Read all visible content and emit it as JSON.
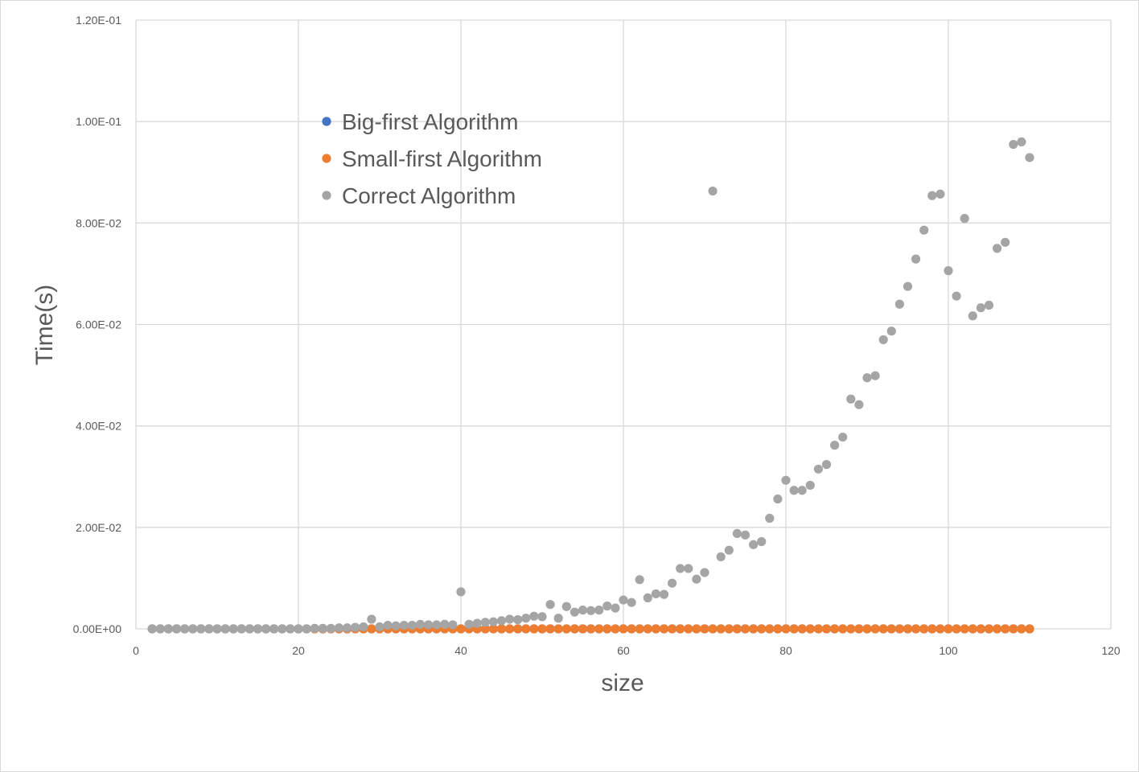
{
  "chart_data": {
    "type": "scatter",
    "title": "",
    "xlabel": "size",
    "ylabel": "Time(s)",
    "xlim": [
      0,
      120
    ],
    "ylim": [
      0,
      0.12
    ],
    "x_ticks": [
      0,
      20,
      40,
      60,
      80,
      100,
      120
    ],
    "x_tick_labels": [
      "0",
      "20",
      "40",
      "60",
      "80",
      "100",
      "120"
    ],
    "y_ticks": [
      0,
      0.02,
      0.04,
      0.06,
      0.08,
      0.1,
      0.12
    ],
    "y_tick_labels": [
      "0.00E+00",
      "2.00E-02",
      "4.00E-02",
      "6.00E-02",
      "8.00E-02",
      "1.00E-01",
      "1.20E-01"
    ],
    "grid": true,
    "legend_position": "upper-left inside plot",
    "series": [
      {
        "name": "Big-first Algorithm",
        "color": "#4472c4",
        "x": [
          2,
          3,
          4,
          5,
          6,
          7,
          8,
          9,
          10,
          11,
          12,
          13,
          14,
          15,
          16,
          17,
          18,
          19,
          20,
          21,
          22,
          23,
          24,
          25,
          26,
          27,
          28,
          29,
          30,
          31,
          32,
          33,
          34,
          35,
          36,
          37,
          38,
          39,
          40,
          41,
          42,
          43,
          44,
          45,
          46,
          47,
          48,
          49,
          50,
          51,
          52,
          53,
          54,
          55,
          56,
          57,
          58,
          59,
          60,
          61,
          62,
          63,
          64,
          65,
          66,
          67,
          68,
          69,
          70,
          71,
          72,
          73,
          74,
          75,
          76,
          77,
          78,
          79,
          80,
          81,
          82,
          83,
          84,
          85,
          86,
          87,
          88,
          89,
          90,
          91,
          92,
          93,
          94,
          95,
          96,
          97,
          98,
          99,
          100,
          101,
          102,
          103,
          104,
          105,
          106,
          107,
          108,
          109,
          110
        ],
        "y": [
          0,
          0,
          0,
          0,
          0,
          0,
          0,
          0,
          0,
          0,
          0,
          0,
          0,
          0,
          0,
          0,
          0,
          0,
          0,
          0,
          0,
          0,
          0,
          0,
          0,
          0,
          0,
          0,
          0,
          0,
          0,
          0,
          0,
          0,
          0,
          0,
          0,
          0,
          0,
          0,
          0,
          0,
          0,
          0,
          0,
          0,
          0,
          0,
          0,
          0,
          0,
          0,
          0,
          0,
          0,
          0,
          0,
          0,
          0,
          0,
          0,
          0,
          0,
          0,
          0,
          0,
          0,
          0,
          0,
          0,
          0,
          0,
          0,
          0,
          0,
          0,
          0,
          0,
          0,
          0,
          0,
          0,
          0,
          0,
          0,
          0,
          0,
          0,
          0,
          0,
          0,
          0,
          0,
          0,
          0,
          0,
          0,
          0,
          0,
          0,
          0,
          0,
          0,
          0,
          0,
          0,
          0,
          0,
          0
        ]
      },
      {
        "name": "Small-first Algorithm",
        "color": "#ed7d31",
        "x": [
          2,
          3,
          4,
          5,
          6,
          7,
          8,
          9,
          10,
          11,
          12,
          13,
          14,
          15,
          16,
          17,
          18,
          19,
          20,
          21,
          22,
          23,
          24,
          25,
          26,
          27,
          28,
          29,
          30,
          31,
          32,
          33,
          34,
          35,
          36,
          37,
          38,
          39,
          40,
          41,
          42,
          43,
          44,
          45,
          46,
          47,
          48,
          49,
          50,
          51,
          52,
          53,
          54,
          55,
          56,
          57,
          58,
          59,
          60,
          61,
          62,
          63,
          64,
          65,
          66,
          67,
          68,
          69,
          70,
          71,
          72,
          73,
          74,
          75,
          76,
          77,
          78,
          79,
          80,
          81,
          82,
          83,
          84,
          85,
          86,
          87,
          88,
          89,
          90,
          91,
          92,
          93,
          94,
          95,
          96,
          97,
          98,
          99,
          100,
          101,
          102,
          103,
          104,
          105,
          106,
          107,
          108,
          109,
          110
        ],
        "y": [
          0,
          0,
          0,
          0,
          0,
          0,
          0,
          0,
          0,
          0,
          0,
          0,
          0,
          0,
          0,
          0,
          0,
          0,
          0,
          0,
          0,
          0,
          0,
          0,
          0,
          0,
          0,
          0,
          0,
          0,
          0,
          0,
          0,
          0,
          0,
          0,
          0,
          0,
          0,
          0,
          0,
          0,
          0,
          0,
          0,
          0,
          0,
          0,
          0,
          0,
          0,
          0,
          0,
          0,
          0,
          0,
          0,
          0,
          0,
          0,
          0,
          0,
          0,
          0,
          0,
          0,
          0,
          0,
          0,
          0,
          0,
          0,
          0,
          0,
          0,
          0,
          0,
          0,
          0,
          0,
          0,
          0,
          0,
          0,
          0,
          0,
          0,
          0,
          0,
          0,
          0,
          0,
          0,
          0,
          0,
          0,
          0,
          0,
          0,
          0,
          0,
          0,
          0,
          0,
          0,
          0,
          0,
          0,
          0
        ]
      },
      {
        "name": "Correct Algorithm",
        "color": "#a5a5a5",
        "x": [
          2,
          3,
          4,
          5,
          6,
          7,
          8,
          9,
          10,
          11,
          12,
          13,
          14,
          15,
          16,
          17,
          18,
          19,
          20,
          21,
          22,
          23,
          24,
          25,
          26,
          27,
          28,
          29,
          30,
          31,
          32,
          33,
          34,
          35,
          36,
          37,
          38,
          39,
          40,
          41,
          42,
          43,
          44,
          45,
          46,
          47,
          48,
          49,
          50,
          51,
          52,
          53,
          54,
          55,
          56,
          57,
          58,
          59,
          60,
          61,
          62,
          63,
          64,
          65,
          66,
          67,
          68,
          69,
          70,
          71,
          72,
          73,
          74,
          75,
          76,
          77,
          78,
          79,
          80,
          81,
          82,
          83,
          84,
          85,
          86,
          87,
          88,
          89,
          90,
          91,
          92,
          93,
          94,
          95,
          96,
          97,
          98,
          99,
          100,
          101,
          102,
          103,
          104,
          105,
          106,
          107,
          108,
          109,
          110
        ],
        "y": [
          0,
          0,
          0,
          0,
          0,
          0,
          0,
          0,
          0,
          0,
          0,
          0,
          0,
          0,
          0,
          0,
          0,
          0,
          0,
          0,
          0.0001,
          0.0001,
          0.0001,
          0.0002,
          0.0002,
          0.0003,
          0.0004,
          0.0019,
          0.0004,
          0.0007,
          0.0006,
          0.0007,
          0.0007,
          0.0009,
          0.0008,
          0.0008,
          0.0009,
          0.0008,
          0.0073,
          0.0009,
          0.0011,
          0.0013,
          0.0014,
          0.0016,
          0.0019,
          0.0018,
          0.0021,
          0.0025,
          0.0024,
          0.0048,
          0.0021,
          0.0044,
          0.0033,
          0.0037,
          0.0036,
          0.0037,
          0.0045,
          0.0041,
          0.0057,
          0.0052,
          0.0097,
          0.0061,
          0.0069,
          0.0068,
          0.009,
          0.0119,
          0.0119,
          0.0098,
          0.0111,
          0.0863,
          0.0142,
          0.0155,
          0.0188,
          0.0185,
          0.0166,
          0.0172,
          0.0218,
          0.0256,
          0.0293,
          0.0273,
          0.0273,
          0.0283,
          0.0315,
          0.0324,
          0.0362,
          0.0378,
          0.0453,
          0.0442,
          0.0495,
          0.0499,
          0.057,
          0.0587,
          0.064,
          0.0675,
          0.0729,
          0.0786,
          0.0854,
          0.0857,
          0.0706,
          0.0656,
          0.0809,
          0.0617,
          0.0633,
          0.0638,
          0.075,
          0.0762,
          0.0955,
          0.096,
          0.0929
        ]
      }
    ]
  }
}
